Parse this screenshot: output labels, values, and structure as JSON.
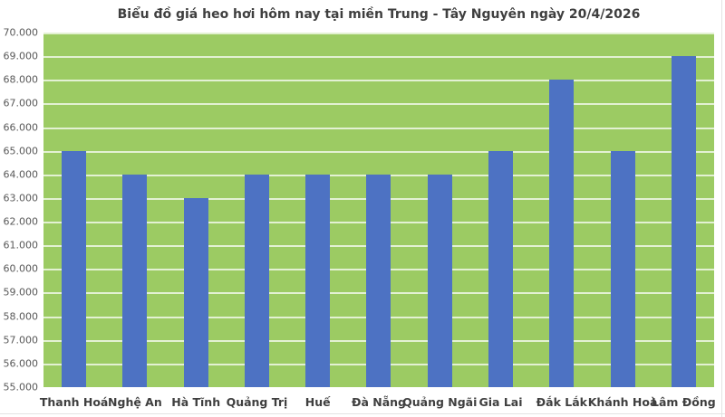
{
  "chart_data": {
    "type": "bar",
    "title": "Biểu đồ giá heo hơi hôm nay tại miền Trung - Tây Nguyên ngày 20/4/2026",
    "categories": [
      "Thanh Hoá",
      "Nghệ An",
      "Hà Tĩnh",
      "Quảng Trị",
      "Huế",
      "Đà Nẵng",
      "Quảng Ngãi",
      "Gia Lai",
      "Đắk Lắk",
      "Khánh Hoà",
      "Lâm Đồng"
    ],
    "values": [
      65000,
      64000,
      63000,
      64000,
      64000,
      64000,
      64000,
      65000,
      68000,
      65000,
      69000
    ],
    "xlabel": "",
    "ylabel": "",
    "ylim": [
      55000,
      70000
    ],
    "ytick_step": 1000,
    "yticks": [
      {
        "value": 55000,
        "label": "55.000"
      },
      {
        "value": 56000,
        "label": "56.000"
      },
      {
        "value": 57000,
        "label": "57.000"
      },
      {
        "value": 58000,
        "label": "58.000"
      },
      {
        "value": 59000,
        "label": "59.000"
      },
      {
        "value": 60000,
        "label": "60.000"
      },
      {
        "value": 61000,
        "label": "61.000"
      },
      {
        "value": 62000,
        "label": "62.000"
      },
      {
        "value": 63000,
        "label": "63.000"
      },
      {
        "value": 64000,
        "label": "64.000"
      },
      {
        "value": 65000,
        "label": "65.000"
      },
      {
        "value": 66000,
        "label": "66.000"
      },
      {
        "value": 67000,
        "label": "67.000"
      },
      {
        "value": 68000,
        "label": "68.000"
      },
      {
        "value": 69000,
        "label": "69.000"
      },
      {
        "value": 70000,
        "label": "70.000"
      }
    ],
    "grid": true,
    "legend": "none",
    "colors": {
      "bar": "#4D72C3",
      "plot_background": "#9CCB63",
      "gridline": "rgba(255,255,255,0.72)",
      "title_text": "#3F3F3F",
      "x_axis_text": "#3F3F3F",
      "y_axis_text": "#595959",
      "page_background": "#FFFFFF"
    }
  }
}
